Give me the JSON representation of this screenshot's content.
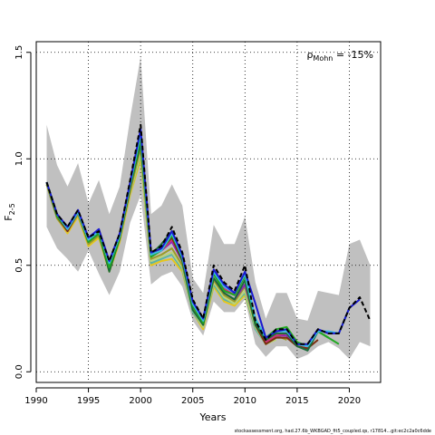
{
  "chart_data": {
    "type": "line",
    "xlabel": "Years",
    "ylabel_main": "F",
    "ylabel_sub": "2-5",
    "annotation": {
      "prefix": "ρ",
      "sub": "Mohn",
      "value": " = -15%"
    },
    "footer": "stockassessment.org, had.27.6b_WKBGAD_fit5_coupled.qs, r17814...git:ec2c2a0c6dde",
    "xlim": [
      1990,
      2023
    ],
    "ylim": [
      -0.05,
      1.55
    ],
    "xticks": [
      1990,
      1995,
      2000,
      2005,
      2010,
      2015,
      2020
    ],
    "yticks": [
      0.0,
      0.5,
      1.0,
      1.5
    ],
    "ytick_labels": [
      "0.0",
      "0.5",
      "1.0",
      "1.5"
    ],
    "grid": "dotted",
    "band": {
      "x": [
        1991,
        1992,
        1993,
        1994,
        1995,
        1996,
        1997,
        1998,
        1999,
        2000,
        2001,
        2002,
        2003,
        2004,
        2005,
        2006,
        2007,
        2008,
        2009,
        2010,
        2011,
        2012,
        2013,
        2014,
        2015,
        2016,
        2017,
        2018,
        2019,
        2020,
        2021,
        2022
      ],
      "lower": [
        0.68,
        0.58,
        0.53,
        0.47,
        0.57,
        0.46,
        0.36,
        0.47,
        0.7,
        0.83,
        0.41,
        0.45,
        0.47,
        0.4,
        0.24,
        0.17,
        0.33,
        0.28,
        0.28,
        0.34,
        0.13,
        0.07,
        0.12,
        0.12,
        0.06,
        0.08,
        0.12,
        0.14,
        0.11,
        0.06,
        0.14,
        0.12
      ],
      "upper": [
        1.16,
        0.97,
        0.87,
        0.98,
        0.79,
        0.9,
        0.74,
        0.87,
        1.19,
        1.48,
        0.74,
        0.78,
        0.88,
        0.78,
        0.44,
        0.37,
        0.69,
        0.6,
        0.6,
        0.73,
        0.42,
        0.25,
        0.37,
        0.37,
        0.25,
        0.24,
        0.38,
        0.37,
        0.36,
        0.6,
        0.62,
        0.5
      ]
    },
    "series": [
      {
        "color": "#000000",
        "dashed": true,
        "x": [
          1991,
          1992,
          1993,
          1994,
          1995,
          1996,
          1997,
          1998,
          1999,
          2000,
          2001,
          2002,
          2003,
          2004,
          2005,
          2006,
          2007,
          2008,
          2009,
          2010,
          2011,
          2012,
          2013,
          2014,
          2015,
          2016,
          2017,
          2018,
          2019,
          2020,
          2021,
          2022
        ],
        "values": [
          0.89,
          0.74,
          0.68,
          0.76,
          0.63,
          0.66,
          0.52,
          0.65,
          0.9,
          1.16,
          0.56,
          0.59,
          0.68,
          0.56,
          0.34,
          0.25,
          0.5,
          0.42,
          0.38,
          0.5,
          0.24,
          0.15,
          0.2,
          0.2,
          0.13,
          0.13,
          0.2,
          0.18,
          0.18,
          0.3,
          0.35,
          0.24
        ]
      },
      {
        "color": "#1a1ad0",
        "x": [
          1991,
          1992,
          1993,
          1994,
          1995,
          1996,
          1997,
          1998,
          1999,
          2000,
          2001,
          2002,
          2003,
          2004,
          2005,
          2006,
          2007,
          2008,
          2009,
          2010,
          2011,
          2012,
          2013,
          2014,
          2015,
          2016,
          2017,
          2018,
          2019,
          2020,
          2021
        ],
        "values": [
          0.89,
          0.74,
          0.68,
          0.76,
          0.63,
          0.67,
          0.52,
          0.65,
          0.89,
          1.14,
          0.56,
          0.58,
          0.66,
          0.55,
          0.33,
          0.25,
          0.48,
          0.41,
          0.37,
          0.47,
          0.32,
          0.16,
          0.19,
          0.2,
          0.13,
          0.13,
          0.2,
          0.18,
          0.18,
          0.3,
          0.34
        ]
      },
      {
        "color": "#3bb8e8",
        "x": [
          1991,
          1992,
          1993,
          1994,
          1995,
          1996,
          1997,
          1998,
          1999,
          2000,
          2001,
          2002,
          2003,
          2004,
          2005,
          2006,
          2007,
          2008,
          2009,
          2010,
          2011,
          2012,
          2013,
          2014,
          2015,
          2016,
          2017,
          2018,
          2019,
          2020
        ],
        "values": [
          0.89,
          0.74,
          0.67,
          0.75,
          0.62,
          0.66,
          0.51,
          0.64,
          0.88,
          1.12,
          0.55,
          0.57,
          0.65,
          0.54,
          0.32,
          0.24,
          0.47,
          0.4,
          0.37,
          0.46,
          0.25,
          0.16,
          0.19,
          0.19,
          0.13,
          0.12,
          0.19,
          0.19,
          0.18,
          0.3
        ]
      },
      {
        "color": "#22aa22",
        "x": [
          1991,
          1992,
          1993,
          1994,
          1995,
          1996,
          1997,
          1998,
          1999,
          2000,
          2001,
          2002,
          2003,
          2004,
          2005,
          2006,
          2007,
          2008,
          2009,
          2010,
          2011,
          2012,
          2013,
          2014,
          2015,
          2016,
          2017,
          2018,
          2019
        ],
        "values": [
          0.89,
          0.73,
          0.67,
          0.75,
          0.61,
          0.65,
          0.49,
          0.63,
          0.87,
          1.1,
          0.54,
          0.57,
          0.64,
          0.54,
          0.31,
          0.23,
          0.46,
          0.38,
          0.36,
          0.45,
          0.24,
          0.16,
          0.2,
          0.21,
          0.14,
          0.12,
          0.19,
          0.16,
          0.13
        ]
      },
      {
        "color": "#1b6b3a",
        "x": [
          1991,
          1992,
          1993,
          1994,
          1995,
          1996,
          1997,
          1998,
          1999,
          2000,
          2001,
          2002,
          2003,
          2004,
          2005,
          2006,
          2007,
          2008,
          2009,
          2010,
          2011,
          2012,
          2013,
          2014,
          2015,
          2016,
          2017,
          2018
        ],
        "values": [
          0.89,
          0.73,
          0.67,
          0.75,
          0.61,
          0.65,
          0.47,
          0.63,
          0.87,
          1.07,
          0.55,
          0.6,
          0.66,
          0.52,
          0.29,
          0.22,
          0.44,
          0.37,
          0.34,
          0.43,
          0.22,
          0.15,
          0.18,
          0.18,
          0.12,
          0.1,
          0.19,
          0.16
        ]
      },
      {
        "color": "#7a2e10",
        "x": [
          1991,
          1992,
          1993,
          1994,
          1995,
          1996,
          1997,
          1998,
          1999,
          2000,
          2001,
          2002,
          2003,
          2004,
          2005,
          2006,
          2007,
          2008,
          2009,
          2010,
          2011,
          2012,
          2013,
          2014,
          2015,
          2016,
          2017
        ],
        "values": [
          0.89,
          0.73,
          0.66,
          0.75,
          0.61,
          0.65,
          0.49,
          0.63,
          0.86,
          1.09,
          0.55,
          0.58,
          0.63,
          0.52,
          0.31,
          0.23,
          0.46,
          0.38,
          0.36,
          0.46,
          0.22,
          0.13,
          0.16,
          0.16,
          0.12,
          0.11,
          0.15
        ]
      },
      {
        "color": "#cc3377",
        "x": [
          1991,
          1992,
          1993,
          1994,
          1995,
          1996,
          1997,
          1998,
          1999,
          2000,
          2001,
          2002,
          2003,
          2004,
          2005,
          2006,
          2007,
          2008,
          2009,
          2010,
          2011,
          2012,
          2013,
          2014,
          2015,
          2016
        ],
        "values": [
          0.89,
          0.73,
          0.67,
          0.75,
          0.61,
          0.65,
          0.49,
          0.63,
          0.87,
          1.11,
          0.55,
          0.57,
          0.62,
          0.53,
          0.32,
          0.24,
          0.47,
          0.39,
          0.36,
          0.45,
          0.23,
          0.14,
          0.17,
          0.18,
          0.12,
          0.11
        ]
      },
      {
        "color": "#8822bb",
        "x": [
          1991,
          1992,
          1993,
          1994,
          1995,
          1996,
          1997,
          1998,
          1999,
          2000,
          2001,
          2002,
          2003,
          2004,
          2005,
          2006,
          2007,
          2008,
          2009,
          2010,
          2011,
          2012,
          2013,
          2014,
          2015
        ],
        "values": [
          0.89,
          0.73,
          0.66,
          0.75,
          0.61,
          0.65,
          0.49,
          0.63,
          0.87,
          1.12,
          0.55,
          0.57,
          0.61,
          0.52,
          0.31,
          0.24,
          0.44,
          0.37,
          0.34,
          0.41,
          0.23,
          0.14,
          0.17,
          0.17,
          0.12
        ]
      },
      {
        "color": "#9b9b28",
        "x": [
          1991,
          1992,
          1993,
          1994,
          1995,
          1996,
          1997,
          1998,
          1999,
          2000,
          2001,
          2002,
          2003,
          2004,
          2005,
          2006,
          2007,
          2008,
          2009,
          2010,
          2011,
          2012,
          2013,
          2014
        ],
        "values": [
          0.88,
          0.72,
          0.66,
          0.74,
          0.6,
          0.64,
          0.48,
          0.62,
          0.85,
          1.05,
          0.53,
          0.55,
          0.58,
          0.5,
          0.3,
          0.22,
          0.43,
          0.36,
          0.33,
          0.4,
          0.22,
          0.13,
          0.17,
          0.15
        ]
      },
      {
        "color": "#bcd47a",
        "x": [
          1991,
          1992,
          1993,
          1994,
          1995,
          1996,
          1997,
          1998,
          1999,
          2000,
          2001,
          2002,
          2003,
          2004,
          2005,
          2006,
          2007,
          2008,
          2009,
          2010,
          2011,
          2012,
          2013
        ],
        "values": [
          0.88,
          0.72,
          0.66,
          0.74,
          0.6,
          0.64,
          0.48,
          0.62,
          0.84,
          1.03,
          0.52,
          0.54,
          0.56,
          0.49,
          0.29,
          0.21,
          0.42,
          0.35,
          0.32,
          0.38,
          0.21,
          0.13,
          0.15
        ]
      },
      {
        "color": "#5ab4a5",
        "x": [
          1991,
          1992,
          1993,
          1994,
          1995,
          1996,
          1997,
          1998,
          1999,
          2000,
          2001,
          2002,
          2003,
          2004,
          2005,
          2006,
          2007,
          2008,
          2009,
          2010,
          2011,
          2012
        ],
        "values": [
          0.88,
          0.72,
          0.66,
          0.74,
          0.6,
          0.64,
          0.48,
          0.62,
          0.84,
          1.02,
          0.51,
          0.53,
          0.55,
          0.48,
          0.28,
          0.21,
          0.41,
          0.34,
          0.32,
          0.37,
          0.2,
          0.13
        ]
      },
      {
        "color": "#e6c619",
        "x": [
          1991,
          1992,
          1993,
          1994,
          1995,
          1996,
          1997,
          1998,
          1999,
          2000,
          2001,
          2002,
          2003,
          2004,
          2005,
          2006,
          2007,
          2008,
          2009,
          2010,
          2011
        ],
        "values": [
          0.88,
          0.72,
          0.65,
          0.73,
          0.59,
          0.63,
          0.47,
          0.61,
          0.83,
          1.0,
          0.5,
          0.52,
          0.53,
          0.47,
          0.28,
          0.2,
          0.4,
          0.33,
          0.31,
          0.36,
          0.2
        ]
      }
    ]
  }
}
